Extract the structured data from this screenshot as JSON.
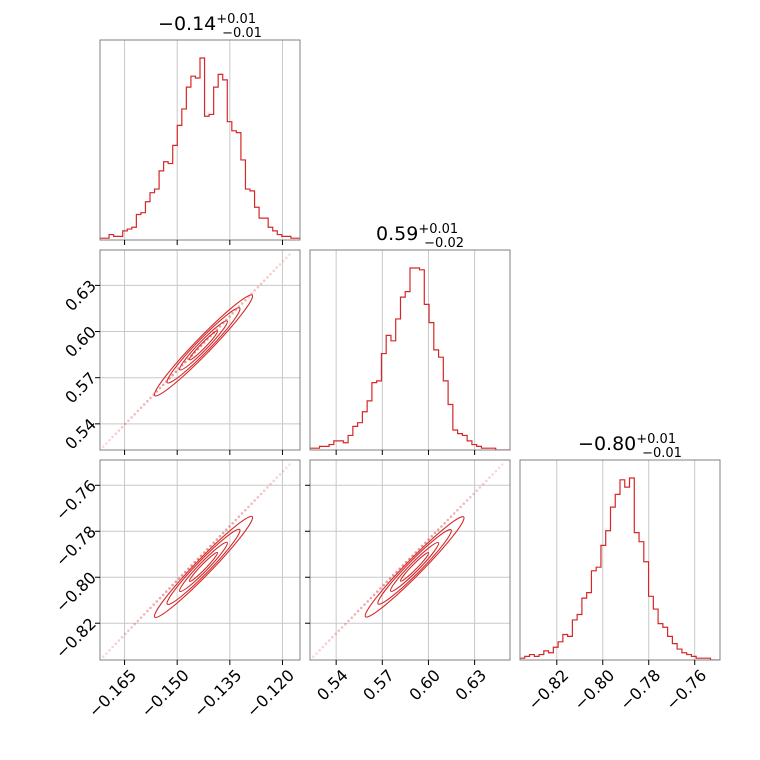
{
  "chart_data": {
    "type": "corner",
    "hist_color": "#d62728",
    "grid": true,
    "parameters": [
      {
        "title": {
          "median": "−0.14",
          "plus": "+0.01",
          "minus": "−0.01"
        },
        "range": [
          -0.172,
          -0.115
        ],
        "ticks": [
          -0.165,
          -0.15,
          -0.135,
          -0.12
        ],
        "tick_labels": [
          "−0.165",
          "−0.150",
          "−0.135",
          "−0.120"
        ],
        "histogram": [
          0.01,
          0.01,
          0.03,
          0.02,
          0.02,
          0.05,
          0.06,
          0.07,
          0.14,
          0.15,
          0.21,
          0.26,
          0.28,
          0.38,
          0.43,
          0.42,
          0.52,
          0.63,
          0.72,
          0.84,
          0.9,
          0.89,
          1.0,
          0.68,
          0.69,
          0.84,
          0.91,
          0.88,
          0.65,
          0.6,
          0.59,
          0.44,
          0.28,
          0.27,
          0.18,
          0.12,
          0.12,
          0.07,
          0.05,
          0.03,
          0.02,
          0.02,
          0.01,
          0.01
        ]
      },
      {
        "title": {
          "median": "0.59",
          "plus": "+0.01",
          "minus": "−0.02"
        },
        "range": [
          0.523,
          0.653
        ],
        "ticks": [
          0.54,
          0.57,
          0.6,
          0.63
        ],
        "tick_labels": [
          "0.54",
          "0.57",
          "0.60",
          "0.63"
        ],
        "histogram": [
          0.01,
          0.01,
          0.02,
          0.02,
          0.03,
          0.05,
          0.05,
          0.04,
          0.08,
          0.13,
          0.15,
          0.21,
          0.27,
          0.37,
          0.38,
          0.53,
          0.63,
          0.6,
          0.72,
          0.84,
          0.87,
          1.0,
          1.0,
          0.99,
          0.8,
          0.7,
          0.55,
          0.51,
          0.38,
          0.25,
          0.11,
          0.09,
          0.08,
          0.05,
          0.03,
          0.02,
          0.01,
          0.01,
          0.01,
          0.0,
          0.0,
          0.0
        ]
      },
      {
        "title": {
          "median": "−0.80",
          "plus": "+0.01",
          "minus": "−0.01"
        },
        "range": [
          -0.836,
          -0.749
        ],
        "ticks": [
          -0.82,
          -0.8,
          -0.78,
          -0.76
        ],
        "tick_labels": [
          "−0.82",
          "−0.80",
          "−0.78",
          "−0.76"
        ],
        "histogram": [
          0.01,
          0.02,
          0.03,
          0.02,
          0.03,
          0.05,
          0.04,
          0.07,
          0.1,
          0.14,
          0.13,
          0.22,
          0.25,
          0.34,
          0.37,
          0.49,
          0.51,
          0.63,
          0.71,
          0.84,
          0.91,
          0.99,
          0.95,
          1.0,
          0.7,
          0.65,
          0.54,
          0.35,
          0.28,
          0.2,
          0.18,
          0.13,
          0.09,
          0.06,
          0.04,
          0.03,
          0.02,
          0.01,
          0.01,
          0.01,
          0.0,
          0.0
        ]
      }
    ],
    "correlations": {
      "p1_p0": {
        "center": [
          -0.1425,
          0.591
        ],
        "extent": [
          -0.172,
          0.523,
          -0.118,
          0.65
        ]
      },
      "p2_p0": {
        "center": [
          -0.1425,
          -0.7955
        ],
        "extent": [
          -0.172,
          -0.836,
          -0.118,
          -0.751
        ]
      },
      "p2_p1": {
        "center": [
          0.591,
          -0.7955
        ],
        "extent": [
          0.523,
          -0.836,
          0.648,
          -0.751
        ]
      }
    }
  }
}
